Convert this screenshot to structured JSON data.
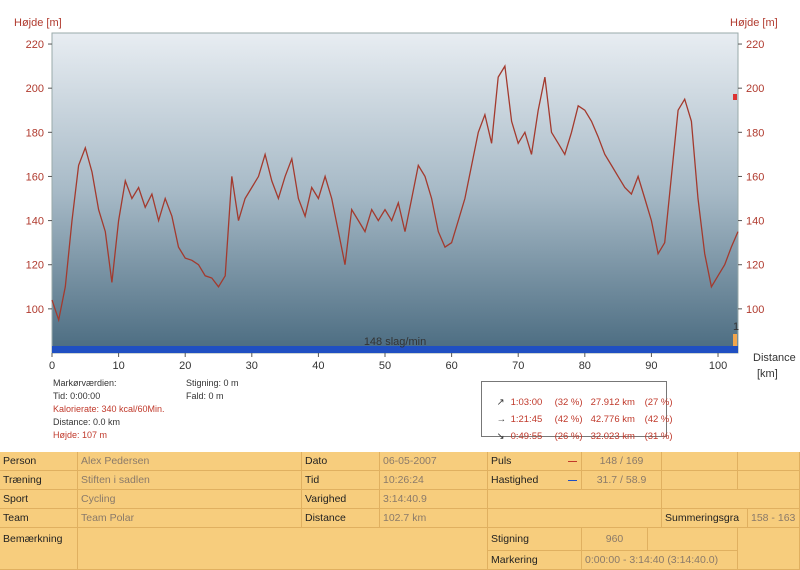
{
  "chart_data": {
    "type": "line",
    "ylabel_left": "Højde [m]",
    "ylabel_right": "Højde [m]",
    "xlabel": "Distance",
    "xlabel_unit": "[km]",
    "xlim": [
      0,
      103
    ],
    "ylim": [
      80,
      225
    ],
    "x_ticks": [
      0,
      10,
      20,
      30,
      40,
      50,
      60,
      70,
      80,
      90,
      100
    ],
    "y_ticks": [
      100,
      120,
      140,
      160,
      180,
      200,
      220
    ],
    "band_label": "148 slag/min",
    "right_marker_label": "1",
    "series": [
      {
        "values": [
          [
            0,
            104
          ],
          [
            1,
            95
          ],
          [
            2,
            110
          ],
          [
            3,
            140
          ],
          [
            4,
            165
          ],
          [
            5,
            173
          ],
          [
            6,
            162
          ],
          [
            7,
            145
          ],
          [
            8,
            135
          ],
          [
            9,
            112
          ],
          [
            10,
            140
          ],
          [
            11,
            158
          ],
          [
            12,
            150
          ],
          [
            13,
            155
          ],
          [
            14,
            146
          ],
          [
            15,
            152
          ],
          [
            16,
            140
          ],
          [
            17,
            150
          ],
          [
            18,
            142
          ],
          [
            19,
            128
          ],
          [
            20,
            123
          ],
          [
            21,
            122
          ],
          [
            22,
            120
          ],
          [
            23,
            115
          ],
          [
            24,
            114
          ],
          [
            25,
            110
          ],
          [
            26,
            115
          ],
          [
            27,
            160
          ],
          [
            28,
            140
          ],
          [
            29,
            150
          ],
          [
            30,
            155
          ],
          [
            31,
            160
          ],
          [
            32,
            170
          ],
          [
            33,
            158
          ],
          [
            34,
            150
          ],
          [
            35,
            160
          ],
          [
            36,
            168
          ],
          [
            37,
            150
          ],
          [
            38,
            142
          ],
          [
            39,
            155
          ],
          [
            40,
            150
          ],
          [
            41,
            160
          ],
          [
            42,
            150
          ],
          [
            43,
            135
          ],
          [
            44,
            120
          ],
          [
            45,
            145
          ],
          [
            46,
            140
          ],
          [
            47,
            135
          ],
          [
            48,
            145
          ],
          [
            49,
            140
          ],
          [
            50,
            145
          ],
          [
            51,
            140
          ],
          [
            52,
            148
          ],
          [
            53,
            135
          ],
          [
            54,
            150
          ],
          [
            55,
            165
          ],
          [
            56,
            160
          ],
          [
            57,
            150
          ],
          [
            58,
            135
          ],
          [
            59,
            128
          ],
          [
            60,
            130
          ],
          [
            61,
            140
          ],
          [
            62,
            150
          ],
          [
            63,
            165
          ],
          [
            64,
            180
          ],
          [
            65,
            188
          ],
          [
            66,
            175
          ],
          [
            67,
            205
          ],
          [
            68,
            210
          ],
          [
            69,
            185
          ],
          [
            70,
            175
          ],
          [
            71,
            180
          ],
          [
            72,
            170
          ],
          [
            73,
            190
          ],
          [
            74,
            205
          ],
          [
            75,
            180
          ],
          [
            76,
            175
          ],
          [
            77,
            170
          ],
          [
            78,
            180
          ],
          [
            79,
            192
          ],
          [
            80,
            190
          ],
          [
            81,
            185
          ],
          [
            82,
            178
          ],
          [
            83,
            170
          ],
          [
            84,
            165
          ],
          [
            85,
            160
          ],
          [
            86,
            155
          ],
          [
            87,
            152
          ],
          [
            88,
            160
          ],
          [
            89,
            150
          ],
          [
            90,
            140
          ],
          [
            91,
            125
          ],
          [
            92,
            130
          ],
          [
            93,
            160
          ],
          [
            94,
            190
          ],
          [
            95,
            195
          ],
          [
            96,
            185
          ],
          [
            97,
            150
          ],
          [
            98,
            125
          ],
          [
            99,
            110
          ],
          [
            100,
            115
          ],
          [
            101,
            120
          ],
          [
            102,
            128
          ],
          [
            103,
            135
          ]
        ]
      }
    ]
  },
  "info_left": {
    "line1": "Markørværdien:",
    "line2": "Tid: 0:00:00",
    "line3": "Kalorierate: 340 kcal/60Min.",
    "line4": "Distance: 0.0 km",
    "line5": "Højde: 107 m"
  },
  "info_mid": {
    "line1": "Stigning: 0 m",
    "line2": "Fald: 0 m"
  },
  "stats": [
    {
      "icon": "↗",
      "time": "1:03:00",
      "pct1": "(32 %)",
      "dist": "27.912 km",
      "pct2": "(27 %)"
    },
    {
      "icon": "→",
      "time": "1:21:45",
      "pct1": "(42 %)",
      "dist": "42.776 km",
      "pct2": "(42 %)"
    },
    {
      "icon": "↘",
      "time": "0:49:55",
      "pct1": "(26 %)",
      "dist": "32.023 km",
      "pct2": "(31 %)"
    }
  ],
  "table": {
    "person_label": "Person",
    "person_value": "Alex  Pedersen",
    "traening_label": "Træning",
    "traening_value": "Stiften i sadlen",
    "sport_label": "Sport",
    "sport_value": "Cycling",
    "team_label": "Team",
    "team_value": "Team Polar",
    "bemaerkning_label": "Bemærkning",
    "dato_label": "Dato",
    "dato_value": "06-05-2007",
    "tid_label": "Tid",
    "tid_value": "10:26:24",
    "varighed_label": "Varighed",
    "varighed_value": "3:14:40.9",
    "distance_label": "Distance",
    "distance_value": "102.7 km",
    "puls_label": "Puls",
    "puls_value": "148 / 169",
    "hastighed_label": "Hastighed",
    "hastighed_value": "31.7 / 58.9",
    "stigning_label": "Stigning",
    "stigning_value": "960",
    "markering_label": "Markering",
    "markering_value": "0:00:00 - 3:14:40 (3:14:40.0)",
    "summering_label": "Summeringsgra",
    "summering_value": "158 - 163"
  },
  "colors": {
    "line": "#a33a2e",
    "band": "#1f4fc2",
    "plot_top": "#e6ebf0",
    "plot_bottom": "#4f7186"
  }
}
